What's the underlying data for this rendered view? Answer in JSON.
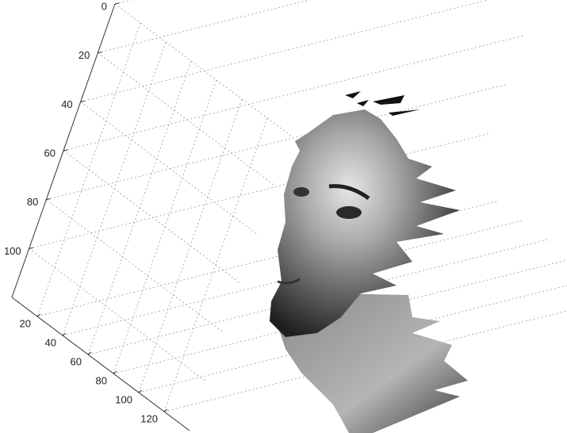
{
  "chart_data": {
    "type": "surface3d",
    "xlim": [
      0,
      140
    ],
    "xticks": [
      20,
      40,
      60,
      80,
      100,
      120
    ],
    "ylim": [
      0,
      120
    ],
    "yticks": [
      0,
      20,
      40,
      60,
      80,
      100
    ],
    "grid": true
  }
}
